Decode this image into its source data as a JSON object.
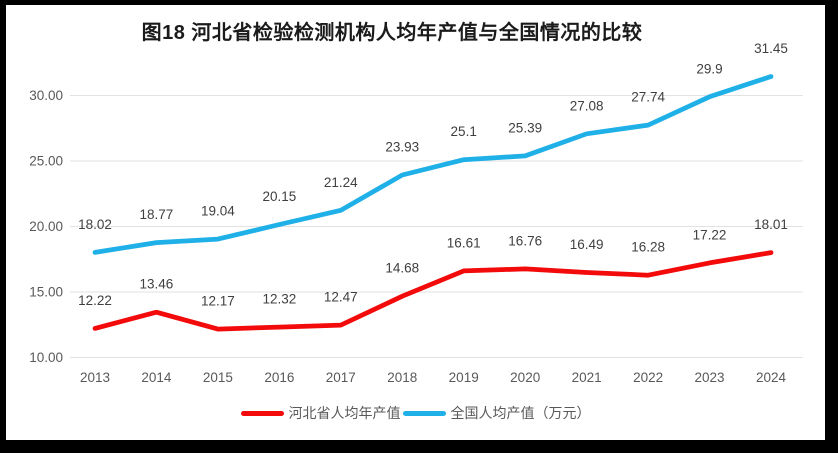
{
  "chart_data": {
    "type": "line",
    "title": "图18 河北省检验检测机构人均年产值与全国情况的比较",
    "categories": [
      "2013",
      "2014",
      "2015",
      "2016",
      "2017",
      "2018",
      "2019",
      "2020",
      "2021",
      "2022",
      "2023",
      "2024"
    ],
    "series": [
      {
        "name": "河北省人均年产值",
        "color": "#f30b0b",
        "values": [
          12.22,
          13.46,
          12.17,
          12.32,
          12.47,
          14.68,
          16.61,
          16.76,
          16.49,
          16.28,
          17.22,
          18.01
        ]
      },
      {
        "name": "全国人均产值（万元）",
        "color": "#1fb0e8",
        "values": [
          18.02,
          18.77,
          19.04,
          20.15,
          21.24,
          23.93,
          25.1,
          25.39,
          27.08,
          27.74,
          29.9,
          31.45
        ]
      }
    ],
    "y_ticks": [
      {
        "label": "30.00",
        "value": 30
      },
      {
        "label": "25.00",
        "value": 25
      },
      {
        "label": "20.00",
        "value": 20
      },
      {
        "label": "15.00",
        "value": 15
      },
      {
        "label": "10.00",
        "value": 10
      }
    ],
    "ylim": [
      10,
      32.6
    ],
    "grid": "horizontal",
    "gridline_color": "#e2e2e2",
    "tick_label_color": "#595959",
    "data_label_color": "#3f3f3f",
    "legend_position": "bottom",
    "data_labels_visible": true,
    "frame_border_color": "#000000",
    "background_color": "#ffffff"
  }
}
